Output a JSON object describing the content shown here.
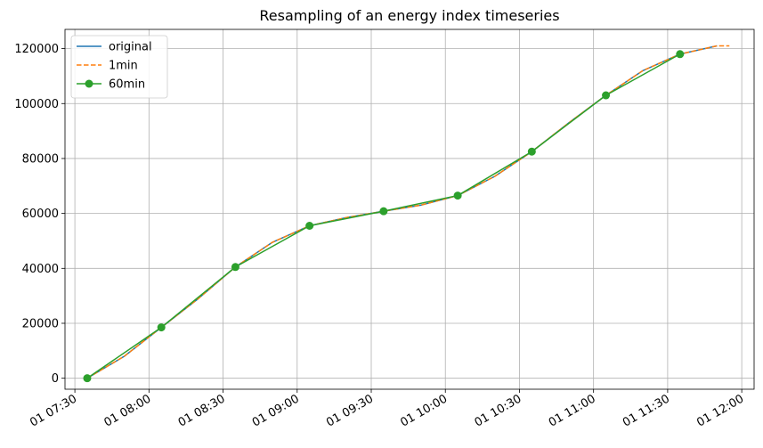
{
  "chart_data": {
    "type": "line",
    "title": "Resampling of an energy index timeseries",
    "xlabel": "",
    "ylabel": "",
    "x_ticks": [
      "01 07:30",
      "01 08:00",
      "01 08:30",
      "01 09:00",
      "01 09:30",
      "01 10:00",
      "01 10:30",
      "01 11:00",
      "01 11:30",
      "01 12:00"
    ],
    "x_range": [
      "07:26",
      "12:05"
    ],
    "y_ticks": [
      0,
      20000,
      40000,
      60000,
      80000,
      100000,
      120000
    ],
    "ylim": [
      -4000,
      127000
    ],
    "grid": true,
    "legend_position": "top-left",
    "series": [
      {
        "name": "original",
        "color": "#1f77b4",
        "style": "solid",
        "x": [
          "07:35",
          "07:50",
          "08:05",
          "08:20",
          "08:35",
          "08:50",
          "09:05",
          "09:20",
          "09:35",
          "09:50",
          "10:05",
          "10:20",
          "10:35",
          "10:50",
          "11:05",
          "11:20",
          "11:35",
          "11:50"
        ],
        "y": [
          0,
          8000,
          18500,
          29000,
          40500,
          49500,
          55500,
          58500,
          60800,
          63000,
          66500,
          73500,
          82500,
          93000,
          103000,
          112000,
          118000,
          121000
        ]
      },
      {
        "name": "1min",
        "color": "#ff7f0e",
        "style": "dashed",
        "x": [
          "07:35",
          "07:50",
          "08:05",
          "08:20",
          "08:35",
          "08:50",
          "09:05",
          "09:20",
          "09:35",
          "09:50",
          "10:05",
          "10:20",
          "10:35",
          "10:50",
          "11:05",
          "11:20",
          "11:35",
          "11:50",
          "11:55"
        ],
        "y": [
          0,
          8000,
          18500,
          29000,
          40500,
          49500,
          55500,
          58500,
          60800,
          63000,
          66500,
          73500,
          82500,
          93000,
          103000,
          112000,
          118000,
          121000,
          121000
        ]
      },
      {
        "name": "60min",
        "color": "#2ca02c",
        "style": "solid-marker",
        "x": [
          "07:35",
          "08:05",
          "08:35",
          "09:05",
          "09:35",
          "10:05",
          "10:35",
          "11:05",
          "11:35"
        ],
        "y": [
          0,
          18500,
          40500,
          55500,
          60800,
          66500,
          82500,
          103000,
          118000
        ]
      }
    ]
  }
}
